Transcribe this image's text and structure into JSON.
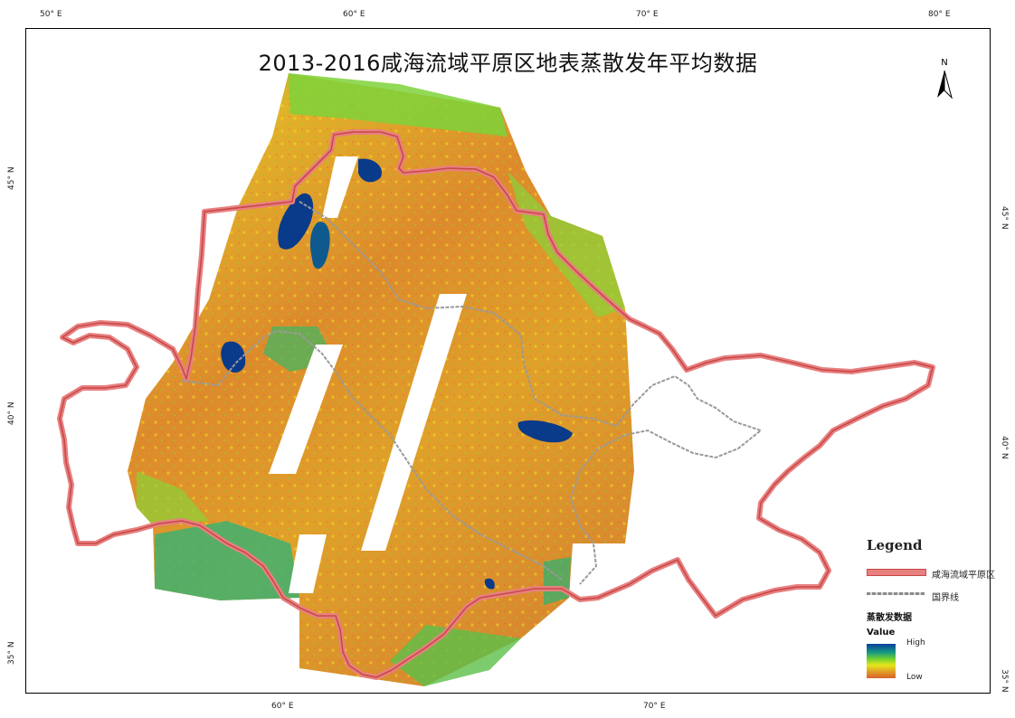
{
  "map": {
    "title": "2013-2016咸海流域平原区地表蒸散发年平均数据",
    "north_label": "N",
    "graticule": {
      "top_lon": [
        "50° E",
        "60° E",
        "70° E",
        "80° E"
      ],
      "bottom_lon": [
        "60° E",
        "70° E"
      ],
      "left_lat": [
        "45° N",
        "40° N",
        "35° N"
      ],
      "right_lat": [
        "45° N",
        "40° N",
        "35° N"
      ]
    },
    "colors": {
      "boundary": "#e88080",
      "boundary_dark": "#c04040",
      "border_line": "#a8a8a8",
      "water": "#0a3a8a"
    }
  },
  "legend": {
    "title": "Legend",
    "items": [
      {
        "label": "咸海流域平原区",
        "symbol": "boundary-line"
      },
      {
        "label": "国界线",
        "symbol": "border-line"
      }
    ],
    "raster_title": "蒸散发数据",
    "raster_sub": "Value",
    "high_label": "High",
    "low_label": "Low"
  }
}
